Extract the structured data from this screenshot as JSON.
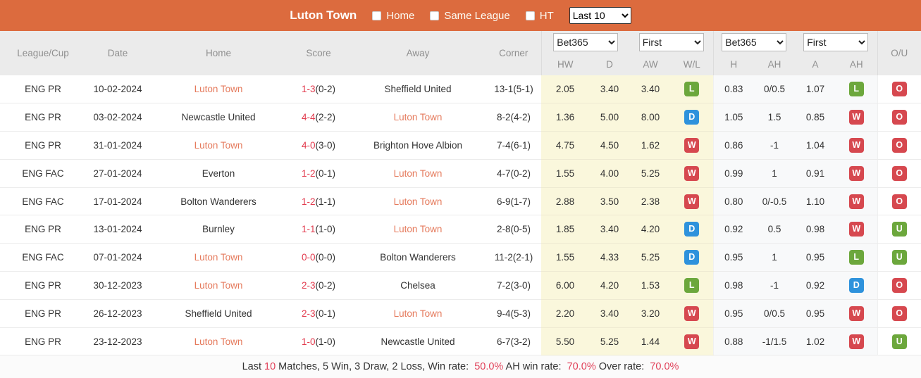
{
  "topbar": {
    "title": "Luton Town",
    "checkboxes": [
      {
        "label": "Home",
        "checked": false
      },
      {
        "label": "Same League",
        "checked": false
      },
      {
        "label": "HT",
        "checked": false
      }
    ],
    "range_select": {
      "value": "Last 10"
    }
  },
  "table": {
    "columns": {
      "league": "League/Cup",
      "date": "Date",
      "home": "Home",
      "score": "Score",
      "away": "Away",
      "corner": "Corner",
      "ou": "O/U"
    },
    "selects": {
      "odds_provider": "Bet365",
      "odds_type": "First",
      "ah_provider": "Bet365",
      "ah_type": "First"
    },
    "sub_headers": {
      "hw": "HW",
      "d": "D",
      "aw": "AW",
      "wl": "W/L",
      "h": "H",
      "ah": "AH",
      "a": "A",
      "ah2": "AH"
    },
    "rows": [
      {
        "league": "ENG PR",
        "date": "10-02-2024",
        "home": "Luton Town",
        "home_highlight": true,
        "score": "1-3",
        "ht_score": "(0-2)",
        "away": "Sheffield United",
        "away_highlight": false,
        "corner": "13-1(5-1)",
        "hw": "2.05",
        "d": "3.40",
        "aw": "3.40",
        "wl": "L",
        "h": "0.83",
        "ah": "0/0.5",
        "a": "1.07",
        "ah_wl": "L",
        "ou": "O"
      },
      {
        "league": "ENG PR",
        "date": "03-02-2024",
        "home": "Newcastle United",
        "home_highlight": false,
        "score": "4-4",
        "ht_score": "(2-2)",
        "away": "Luton Town",
        "away_highlight": true,
        "corner": "8-2(4-2)",
        "hw": "1.36",
        "d": "5.00",
        "aw": "8.00",
        "wl": "D",
        "h": "1.05",
        "ah": "1.5",
        "a": "0.85",
        "ah_wl": "W",
        "ou": "O"
      },
      {
        "league": "ENG PR",
        "date": "31-01-2024",
        "home": "Luton Town",
        "home_highlight": true,
        "score": "4-0",
        "ht_score": "(3-0)",
        "away": "Brighton Hove Albion",
        "away_highlight": false,
        "corner": "7-4(6-1)",
        "hw": "4.75",
        "d": "4.50",
        "aw": "1.62",
        "wl": "W",
        "h": "0.86",
        "ah": "-1",
        "a": "1.04",
        "ah_wl": "W",
        "ou": "O"
      },
      {
        "league": "ENG FAC",
        "date": "27-01-2024",
        "home": "Everton",
        "home_highlight": false,
        "score": "1-2",
        "ht_score": "(0-1)",
        "away": "Luton Town",
        "away_highlight": true,
        "corner": "4-7(0-2)",
        "hw": "1.55",
        "d": "4.00",
        "aw": "5.25",
        "wl": "W",
        "h": "0.99",
        "ah": "1",
        "a": "0.91",
        "ah_wl": "W",
        "ou": "O"
      },
      {
        "league": "ENG FAC",
        "date": "17-01-2024",
        "home": "Bolton Wanderers",
        "home_highlight": false,
        "score": "1-2",
        "ht_score": "(1-1)",
        "away": "Luton Town",
        "away_highlight": true,
        "corner": "6-9(1-7)",
        "hw": "2.88",
        "d": "3.50",
        "aw": "2.38",
        "wl": "W",
        "h": "0.80",
        "ah": "0/-0.5",
        "a": "1.10",
        "ah_wl": "W",
        "ou": "O"
      },
      {
        "league": "ENG PR",
        "date": "13-01-2024",
        "home": "Burnley",
        "home_highlight": false,
        "score": "1-1",
        "ht_score": "(1-0)",
        "away": "Luton Town",
        "away_highlight": true,
        "corner": "2-8(0-5)",
        "hw": "1.85",
        "d": "3.40",
        "aw": "4.20",
        "wl": "D",
        "h": "0.92",
        "ah": "0.5",
        "a": "0.98",
        "ah_wl": "W",
        "ou": "U"
      },
      {
        "league": "ENG FAC",
        "date": "07-01-2024",
        "home": "Luton Town",
        "home_highlight": true,
        "score": "0-0",
        "ht_score": "(0-0)",
        "away": "Bolton Wanderers",
        "away_highlight": false,
        "corner": "11-2(2-1)",
        "hw": "1.55",
        "d": "4.33",
        "aw": "5.25",
        "wl": "D",
        "h": "0.95",
        "ah": "1",
        "a": "0.95",
        "ah_wl": "L",
        "ou": "U"
      },
      {
        "league": "ENG PR",
        "date": "30-12-2023",
        "home": "Luton Town",
        "home_highlight": true,
        "score": "2-3",
        "ht_score": "(0-2)",
        "away": "Chelsea",
        "away_highlight": false,
        "corner": "7-2(3-0)",
        "hw": "6.00",
        "d": "4.20",
        "aw": "1.53",
        "wl": "L",
        "h": "0.98",
        "ah": "-1",
        "a": "0.92",
        "ah_wl": "D",
        "ou": "O"
      },
      {
        "league": "ENG PR",
        "date": "26-12-2023",
        "home": "Sheffield United",
        "home_highlight": false,
        "score": "2-3",
        "ht_score": "(0-1)",
        "away": "Luton Town",
        "away_highlight": true,
        "corner": "9-4(5-3)",
        "hw": "2.20",
        "d": "3.40",
        "aw": "3.20",
        "wl": "W",
        "h": "0.95",
        "ah": "0/0.5",
        "a": "0.95",
        "ah_wl": "W",
        "ou": "O"
      },
      {
        "league": "ENG PR",
        "date": "23-12-2023",
        "home": "Luton Town",
        "home_highlight": true,
        "score": "1-0",
        "ht_score": "(1-0)",
        "away": "Newcastle United",
        "away_highlight": false,
        "corner": "6-7(3-2)",
        "hw": "5.50",
        "d": "5.25",
        "aw": "1.44",
        "wl": "W",
        "h": "0.88",
        "ah": "-1/1.5",
        "a": "1.02",
        "ah_wl": "W",
        "ou": "U"
      }
    ]
  },
  "footer": {
    "parts": [
      {
        "text": "Last ",
        "red": false
      },
      {
        "text": "10",
        "red": true
      },
      {
        "text": " Matches, 5 Win, 3 Draw, 2 Loss, Win rate:  ",
        "red": false
      },
      {
        "text": "50.0%",
        "red": true
      },
      {
        "text": " AH win rate:  ",
        "red": false
      },
      {
        "text": "70.0%",
        "red": true
      },
      {
        "text": " Over rate:  ",
        "red": false
      },
      {
        "text": "70.0%",
        "red": true
      }
    ]
  },
  "colors": {
    "topbar_orange": "#DC6B3E",
    "odds_yellow": "#FAF7DC",
    "win_red": "#D6484F",
    "draw_blue": "#2E92DC",
    "loss_green": "#6CA73C",
    "score_red": "#E23B4E",
    "team_highlight": "#E57A5C",
    "footer_stat_red": "#E1425A"
  }
}
